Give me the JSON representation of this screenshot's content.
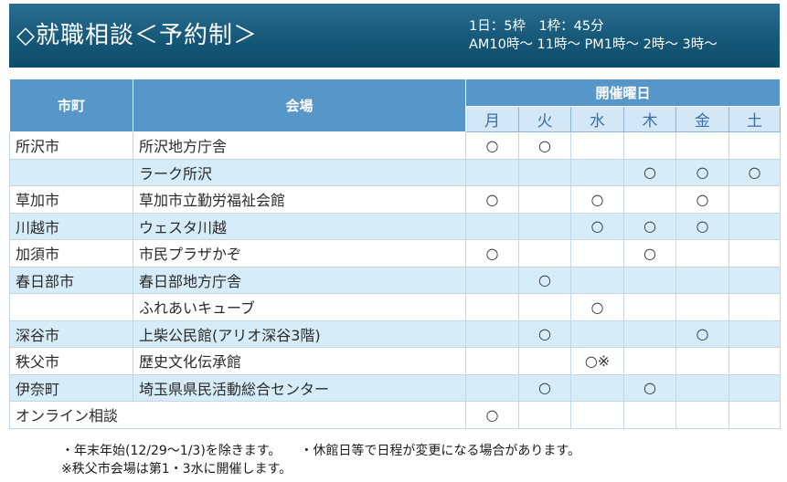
{
  "header": {
    "title": "◇就職相談＜予約制＞",
    "sched_line1": "1日：5枠　1枠：45分",
    "sched_line2": "AM10時～ 11時～ PM1時～ 2時～ 3時～"
  },
  "table": {
    "col_city": "市町",
    "col_venue": "会場",
    "col_days": "開催曜日",
    "days": [
      "月",
      "火",
      "水",
      "木",
      "金",
      "土"
    ],
    "rows": [
      {
        "city": "所沢市",
        "venue": "所沢地方庁舎",
        "marks": [
          "○",
          "○",
          "",
          "",
          "",
          ""
        ]
      },
      {
        "city": "",
        "venue": "ラーク所沢",
        "marks": [
          "",
          "",
          "",
          "○",
          "○",
          "○"
        ]
      },
      {
        "city": "草加市",
        "venue": "草加市立勤労福祉会館",
        "marks": [
          "○",
          "",
          "○",
          "",
          "○",
          ""
        ]
      },
      {
        "city": "川越市",
        "venue": "ウェスタ川越",
        "marks": [
          "",
          "",
          "○",
          "○",
          "○",
          ""
        ]
      },
      {
        "city": "加須市",
        "venue": "市民プラザかぞ",
        "marks": [
          "○",
          "",
          "",
          "○",
          "",
          ""
        ]
      },
      {
        "city": "春日部市",
        "venue": "春日部地方庁舎",
        "marks": [
          "",
          "○",
          "",
          "",
          "",
          ""
        ]
      },
      {
        "city": "",
        "venue": "ふれあいキューブ",
        "marks": [
          "",
          "",
          "○",
          "",
          "",
          ""
        ]
      },
      {
        "city": "深谷市",
        "venue": "上柴公民館(アリオ深谷3階)",
        "marks": [
          "",
          "○",
          "",
          "",
          "○",
          ""
        ]
      },
      {
        "city": "秩父市",
        "venue": "歴史文化伝承館",
        "marks": [
          "",
          "",
          "○※",
          "",
          "",
          ""
        ]
      },
      {
        "city": "伊奈町",
        "venue": "埼玉県県民活動総合センター",
        "marks": [
          "",
          "○",
          "",
          "○",
          "",
          ""
        ]
      }
    ],
    "online": {
      "label": "オンライン相談",
      "marks": [
        "○",
        "",
        "",
        "",
        "",
        ""
      ]
    }
  },
  "notes": {
    "line1a": "・年末年始(12/29～1/3)を除きます。",
    "line1b": "・休館日等で日程が変更になる場合があります。",
    "line2": "※秩父市会場は第1・3水に開催します。"
  }
}
